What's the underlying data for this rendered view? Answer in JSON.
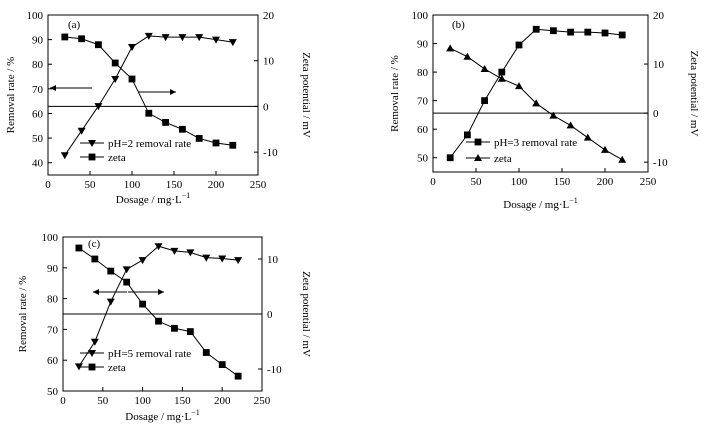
{
  "chart_data": [
    {
      "type": "line",
      "panel_label": "(a)",
      "xlabel": "Dosage / mg·L",
      "xlabel_sup": "−1",
      "ylabel_left": "Removal rate  /  %",
      "ylabel_right": "Zeta potential / mV",
      "xlim": [
        0,
        250
      ],
      "xticks": [
        0,
        50,
        100,
        150,
        200,
        250
      ],
      "ylim_left": [
        35,
        100
      ],
      "yticks_left": [
        40,
        50,
        60,
        70,
        80,
        90,
        100
      ],
      "ylim_right": [
        -15,
        20
      ],
      "yticks_right": [
        -10,
        0,
        10,
        20
      ],
      "zero_line": true,
      "series": [
        {
          "name": "pH=2  removal rate",
          "axis": "left",
          "marker": "triangle-down",
          "x": [
            20,
            40,
            60,
            80,
            100,
            120,
            140,
            160,
            180,
            200,
            220
          ],
          "values": [
            43,
            53,
            63,
            74,
            87,
            91.5,
            91,
            91,
            91,
            90,
            89
          ]
        },
        {
          "name": "zeta",
          "axis": "right",
          "marker": "square",
          "x": [
            20,
            40,
            60,
            80,
            100,
            120,
            140,
            160,
            180,
            200,
            220
          ],
          "values": [
            15.2,
            14.8,
            13.5,
            9.5,
            6,
            -1.5,
            -3.5,
            -5,
            -7,
            -8,
            -8.5
          ]
        }
      ],
      "legend_position": "bottom-left",
      "annotations": [
        "double arrows pointing from curves to their axes"
      ]
    },
    {
      "type": "line",
      "panel_label": "(b)",
      "xlabel": "Dosage / mg·L",
      "xlabel_sup": "−1",
      "ylabel_left": "Removal rate / %",
      "ylabel_right": "Zeta potential / mV",
      "xlim": [
        0,
        250
      ],
      "xticks": [
        0,
        50,
        100,
        150,
        200,
        250
      ],
      "ylim_left": [
        45,
        100
      ],
      "yticks_left": [
        50,
        60,
        70,
        80,
        90,
        100
      ],
      "ylim_right": [
        -12,
        20
      ],
      "yticks_right": [
        -10,
        0,
        10,
        20
      ],
      "zero_line": true,
      "series": [
        {
          "name": "pH=3 removal rate",
          "axis": "left",
          "marker": "square",
          "x": [
            20,
            40,
            60,
            80,
            100,
            120,
            140,
            160,
            180,
            200,
            220
          ],
          "values": [
            50,
            58,
            70,
            80,
            89.5,
            95,
            94.5,
            94,
            94,
            93.7,
            93
          ]
        },
        {
          "name": "zeta",
          "axis": "right",
          "marker": "triangle-up",
          "x": [
            20,
            40,
            60,
            80,
            100,
            120,
            140,
            160,
            180,
            200,
            220
          ],
          "values": [
            13.2,
            11.5,
            9,
            7,
            5.5,
            2,
            -0.5,
            -2.5,
            -5,
            -7.5,
            -9.5
          ]
        }
      ],
      "legend_position": "bottom-left"
    },
    {
      "type": "line",
      "panel_label": "(c)",
      "xlabel": "Dosage / mg·L",
      "xlabel_sup": "−1",
      "ylabel_left": "Removal rate / %",
      "ylabel_right": "Zeta potential / mV",
      "xlim": [
        0,
        250
      ],
      "xticks": [
        0,
        50,
        100,
        150,
        200,
        250
      ],
      "ylim_left": [
        50,
        100
      ],
      "yticks_left": [
        50,
        60,
        70,
        80,
        90,
        100
      ],
      "ylim_right": [
        -14,
        14
      ],
      "yticks_right": [
        -10,
        0,
        10
      ],
      "zero_line": true,
      "series": [
        {
          "name": "pH=5  removal rate",
          "axis": "left",
          "marker": "triangle-down",
          "x": [
            20,
            40,
            60,
            80,
            100,
            120,
            140,
            160,
            180,
            200,
            220
          ],
          "values": [
            58,
            66,
            79,
            89.5,
            92.5,
            97,
            95.5,
            95,
            93.3,
            93,
            92.5
          ]
        },
        {
          "name": "zeta",
          "axis": "right",
          "marker": "square",
          "x": [
            20,
            40,
            60,
            80,
            100,
            120,
            140,
            160,
            180,
            200,
            220
          ],
          "values": [
            12,
            10,
            7.8,
            5.8,
            1.8,
            -1.3,
            -2.6,
            -3.2,
            -7,
            -9.2,
            -11.3
          ]
        }
      ],
      "legend_position": "bottom-left",
      "annotations": [
        "double arrows pointing from curves to their axes"
      ]
    }
  ]
}
